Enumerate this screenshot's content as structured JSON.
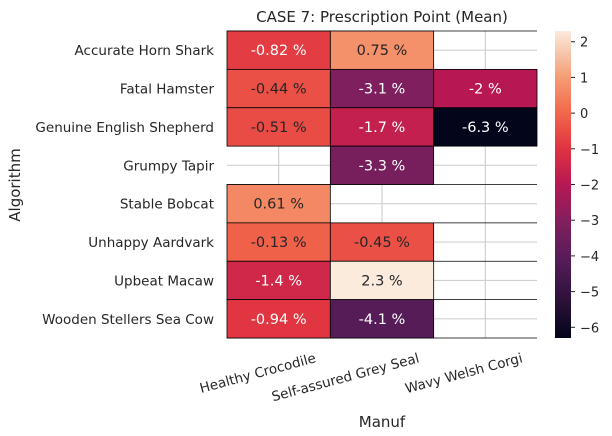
{
  "chart_data": {
    "type": "heatmap",
    "title": "CASE 7: Prescription Point (Mean)",
    "xlabel": "Manuf",
    "ylabel": "Algorithm",
    "x_categories": [
      "Healthy Crocodile",
      "Self-assured Grey Seal",
      "Wavy Welsh Corgi"
    ],
    "y_categories": [
      "Accurate Horn Shark",
      "Fatal Hamster",
      "Genuine English Shepherd",
      "Grumpy Tapir",
      "Stable Bobcat",
      "Unhappy Aardvark",
      "Upbeat Macaw",
      "Wooden Stellers Sea Cow"
    ],
    "values": [
      [
        -0.82,
        0.75,
        null
      ],
      [
        -0.44,
        -3.1,
        -2
      ],
      [
        -0.51,
        -1.7,
        -6.3
      ],
      [
        null,
        -3.3,
        null
      ],
      [
        0.61,
        null,
        null
      ],
      [
        -0.13,
        -0.45,
        null
      ],
      [
        -1.4,
        2.3,
        null
      ],
      [
        -0.94,
        -4.1,
        null
      ]
    ],
    "cell_labels": [
      [
        "-0.82 %",
        "0.75 %",
        ""
      ],
      [
        "-0.44 %",
        "-3.1 %",
        "-2 %"
      ],
      [
        "-0.51 %",
        "-1.7 %",
        "-6.3 %"
      ],
      [
        "",
        "-3.3 %",
        ""
      ],
      [
        "0.61 %",
        "",
        ""
      ],
      [
        "-0.13 %",
        "-0.45 %",
        ""
      ],
      [
        "-1.4 %",
        "2.3 %",
        ""
      ],
      [
        "-0.94 %",
        "-4.1 %",
        ""
      ]
    ],
    "colorbar": {
      "range": [
        -6.3,
        2.3
      ],
      "ticks": [
        2,
        1,
        0,
        -1,
        -2,
        -3,
        -4,
        -5,
        -6
      ],
      "tick_labels": [
        "2",
        "1",
        "0",
        "−1",
        "−2",
        "−3",
        "−4",
        "−5",
        "−6"
      ],
      "colormap": "rocket"
    },
    "grid": true
  }
}
